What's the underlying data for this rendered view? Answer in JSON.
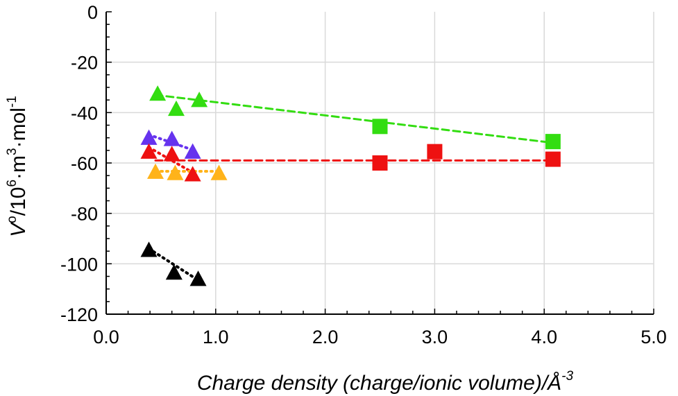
{
  "chart_data": {
    "type": "scatter",
    "xlabel": "Charge density (charge/ionic volume)/Å",
    "xlabel_sup": "-3",
    "ylabel_parts": [
      "V",
      "o",
      "/10",
      "6",
      "·m",
      "3",
      "·mol",
      "-1"
    ],
    "xlim": [
      0,
      5
    ],
    "ylim": [
      -120,
      0
    ],
    "xticks": [
      0,
      1,
      2,
      3,
      4,
      5
    ],
    "xtick_labels": [
      "0.0",
      "1.0",
      "2.0",
      "3.0",
      "4.0",
      "5.0"
    ],
    "yticks": [
      0,
      -20,
      -40,
      -60,
      -80,
      -100,
      -120
    ],
    "ytick_labels": [
      "0",
      "-20",
      "-40",
      "-60",
      "-80",
      "-100",
      "-120"
    ],
    "grid": true,
    "legend": "none",
    "series": [
      {
        "marker": "triangle",
        "color": "#33dd11",
        "line": "dashed",
        "points": [
          [
            0.47,
            -32.5
          ],
          [
            0.64,
            -38.5
          ],
          [
            0.85,
            -35
          ]
        ]
      },
      {
        "marker": "square",
        "color": "#33dd11",
        "line": "dashed",
        "points": [
          [
            2.5,
            -45.5
          ],
          [
            4.08,
            -51.5
          ]
        ]
      },
      {
        "marker": "triangle",
        "color": "#6633ee",
        "line": "dotted",
        "points": [
          [
            0.39,
            -50
          ],
          [
            0.6,
            -50.5
          ],
          [
            0.79,
            -55.5
          ]
        ]
      },
      {
        "marker": "triangle",
        "color": "#ee1111",
        "line": "dotted",
        "points": [
          [
            0.39,
            -55.5
          ],
          [
            0.6,
            -56.5
          ],
          [
            0.79,
            -64.5
          ]
        ]
      },
      {
        "marker": "square",
        "color": "#ee1111",
        "line": "dashed",
        "points": [
          [
            2.5,
            -60
          ],
          [
            3.0,
            -55.5
          ],
          [
            4.08,
            -58.5
          ]
        ]
      },
      {
        "marker": "triangle",
        "color": "#ffb31a",
        "line": "dotted",
        "points": [
          [
            0.45,
            -63.5
          ],
          [
            0.63,
            -64
          ],
          [
            1.03,
            -64
          ]
        ]
      },
      {
        "marker": "triangle",
        "color": "#000000",
        "line": "dotted",
        "points": [
          [
            0.39,
            -94.5
          ],
          [
            0.62,
            -103.5
          ],
          [
            0.84,
            -106
          ]
        ]
      }
    ],
    "trendlines": [
      {
        "color": "#33dd11",
        "style": "dashed",
        "x": [
          0.45,
          4.08
        ],
        "y": [
          -33,
          -52
        ]
      },
      {
        "color": "#ee1111",
        "style": "dashed",
        "x": [
          0.45,
          4.08
        ],
        "y": [
          -59,
          -59
        ]
      },
      {
        "color": "#6633ee",
        "style": "dotted",
        "x": [
          0.39,
          0.79
        ],
        "y": [
          -48.8,
          -54.8
        ]
      },
      {
        "color": "#ee1111",
        "style": "dotted",
        "x": [
          0.39,
          0.79
        ],
        "y": [
          -53.8,
          -63.8
        ]
      },
      {
        "color": "#ffb31a",
        "style": "dotted",
        "x": [
          0.45,
          1.03
        ],
        "y": [
          -63.3,
          -63.3
        ]
      },
      {
        "color": "#000000",
        "style": "dotted",
        "x": [
          0.39,
          0.84
        ],
        "y": [
          -94,
          -106.5
        ]
      }
    ]
  }
}
